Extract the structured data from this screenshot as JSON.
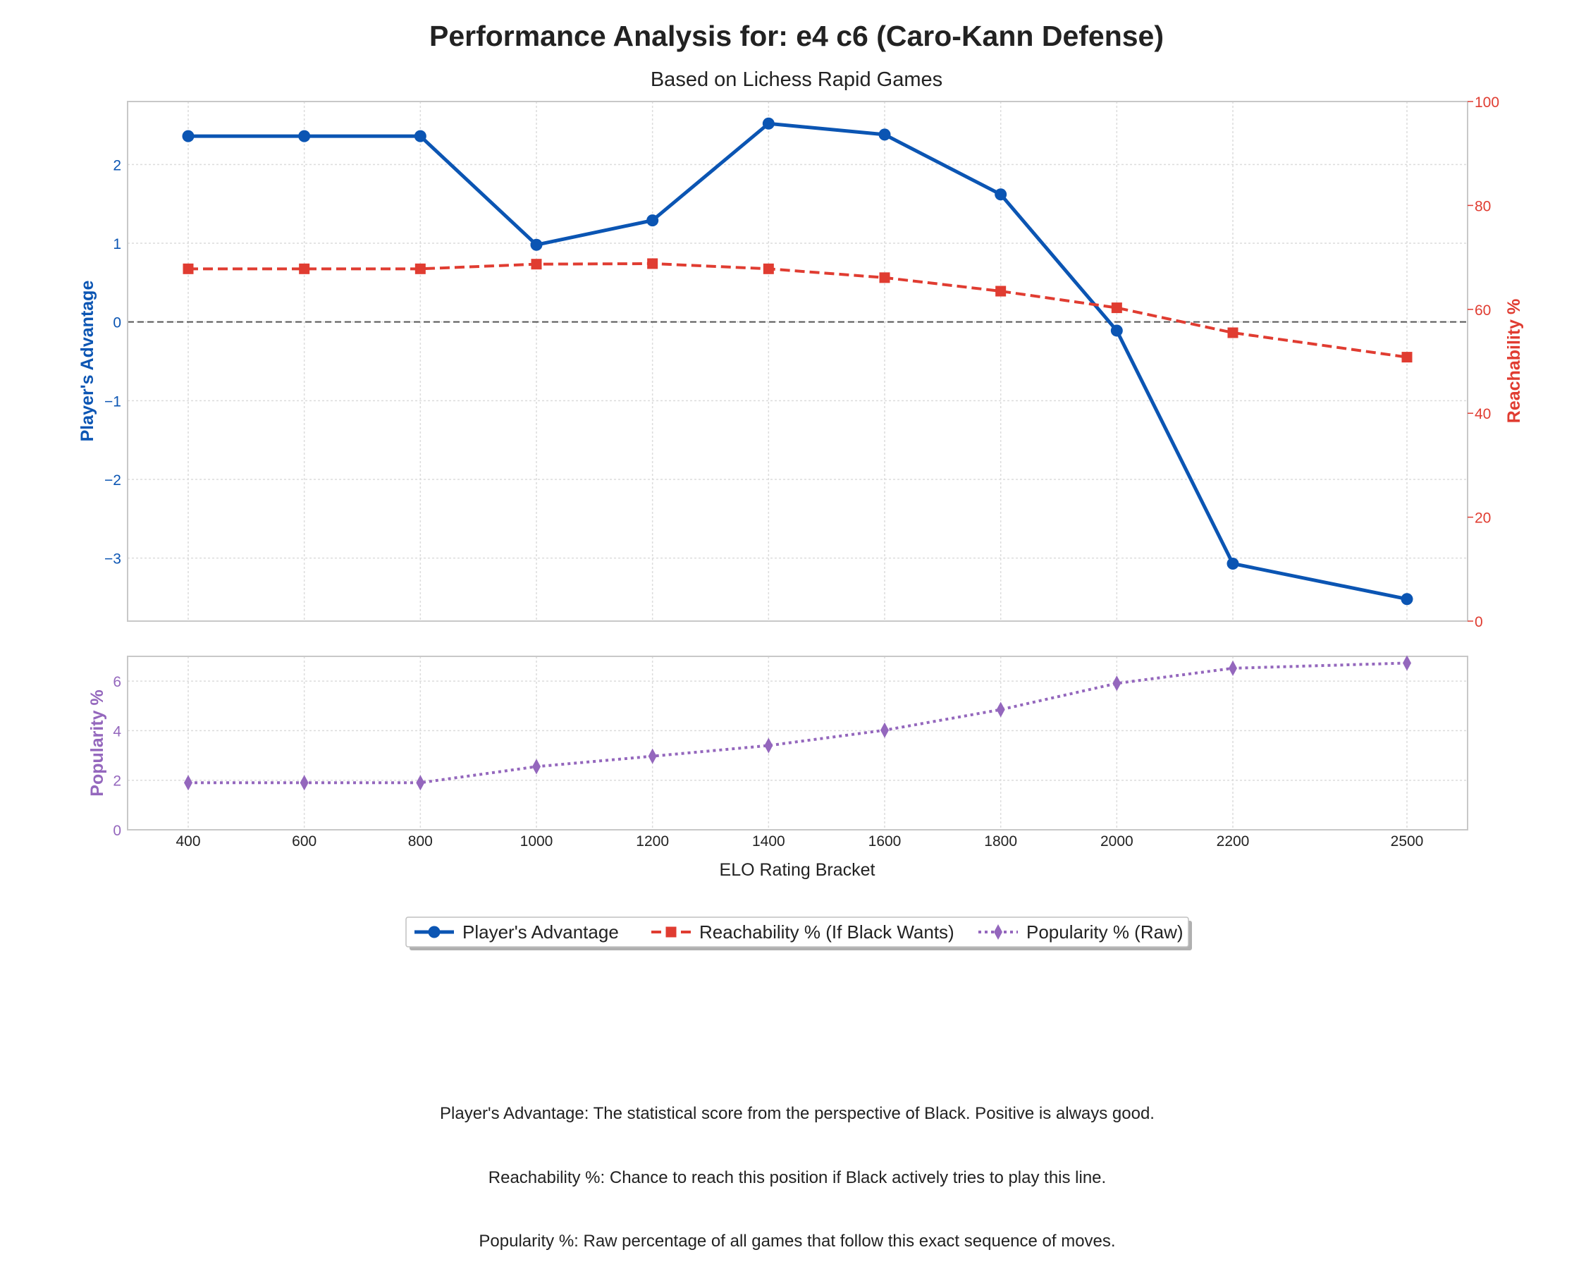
{
  "chart_data": {
    "type": "line",
    "title": "Performance Analysis for: e4 c6 (Caro-Kann Defense)",
    "subtitle": "Based on Lichess Rapid Games",
    "x": [
      400,
      600,
      800,
      1000,
      1200,
      1400,
      1600,
      1800,
      2000,
      2200,
      2500
    ],
    "xlabel": "ELO Rating Bracket",
    "grid": true,
    "top_panel": {
      "y_left_label": "Player's Advantage",
      "y_left_lim": [
        -3.8,
        2.8
      ],
      "y_left_ticks": [
        -3,
        -2,
        -1,
        0,
        1,
        2
      ],
      "y_right_label": "Reachability %",
      "y_right_lim": [
        0,
        100
      ],
      "y_right_ticks": [
        0,
        20,
        40,
        60,
        80,
        100
      ],
      "reference_line": 0
    },
    "bottom_panel": {
      "y_label": "Popularity %",
      "y_lim": [
        0,
        7
      ],
      "y_ticks": [
        0,
        2,
        4,
        6
      ]
    },
    "series": [
      {
        "name": "Player's Advantage",
        "axis": "left",
        "color": "#0b55b3",
        "style": "solid",
        "marker": "circle",
        "values": [
          2.36,
          2.36,
          2.36,
          0.98,
          1.29,
          2.52,
          2.38,
          1.62,
          -0.11,
          -3.07,
          -3.52
        ]
      },
      {
        "name": "Reachability % (If Black Wants)",
        "axis": "right",
        "color": "#e03c31",
        "style": "dashed",
        "marker": "square",
        "values": [
          67.8,
          67.8,
          67.8,
          68.7,
          68.8,
          67.8,
          66.1,
          63.5,
          60.3,
          55.5,
          50.8
        ]
      },
      {
        "name": "Popularity % (Raw)",
        "axis": "bottom",
        "color": "#9467bd",
        "style": "dotted",
        "marker": "diamond",
        "values": [
          1.9,
          1.9,
          1.9,
          2.55,
          2.97,
          3.4,
          4.02,
          4.85,
          5.91,
          6.52,
          6.73
        ]
      }
    ],
    "legend_position": "bottom-center"
  },
  "captions": [
    "Player's Advantage: The statistical score from the perspective of Black. Positive is always good.",
    "Reachability %: Chance to reach this position if Black actively tries to play this line.",
    "Popularity %: Raw percentage of all games that follow this exact sequence of moves."
  ]
}
